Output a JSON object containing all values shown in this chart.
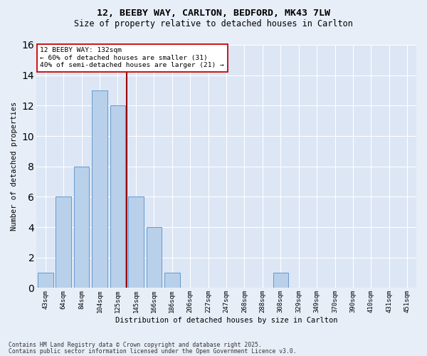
{
  "title1": "12, BEEBY WAY, CARLTON, BEDFORD, MK43 7LW",
  "title2": "Size of property relative to detached houses in Carlton",
  "xlabel": "Distribution of detached houses by size in Carlton",
  "ylabel": "Number of detached properties",
  "bar_labels": [
    "43sqm",
    "64sqm",
    "84sqm",
    "104sqm",
    "125sqm",
    "145sqm",
    "166sqm",
    "186sqm",
    "206sqm",
    "227sqm",
    "247sqm",
    "268sqm",
    "288sqm",
    "308sqm",
    "329sqm",
    "349sqm",
    "370sqm",
    "390sqm",
    "410sqm",
    "431sqm",
    "451sqm"
  ],
  "bar_values": [
    1,
    6,
    8,
    13,
    12,
    6,
    4,
    1,
    0,
    0,
    0,
    0,
    0,
    1,
    0,
    0,
    0,
    0,
    0,
    0,
    0
  ],
  "bar_color": "#b8d0ea",
  "bar_edgecolor": "#6699cc",
  "fig_bg_color": "#e8eef8",
  "ax_bg_color": "#dce6f5",
  "grid_color": "#ffffff",
  "vline_x_idx": 4.5,
  "vline_color": "#990000",
  "annotation_text": "12 BEEBY WAY: 132sqm\n← 60% of detached houses are smaller (31)\n40% of semi-detached houses are larger (21) →",
  "annotation_box_facecolor": "#ffffff",
  "annotation_box_edgecolor": "#cc0000",
  "ylim": [
    0,
    16
  ],
  "yticks": [
    0,
    2,
    4,
    6,
    8,
    10,
    12,
    14,
    16
  ],
  "footer1": "Contains HM Land Registry data © Crown copyright and database right 2025.",
  "footer2": "Contains public sector information licensed under the Open Government Licence v3.0."
}
